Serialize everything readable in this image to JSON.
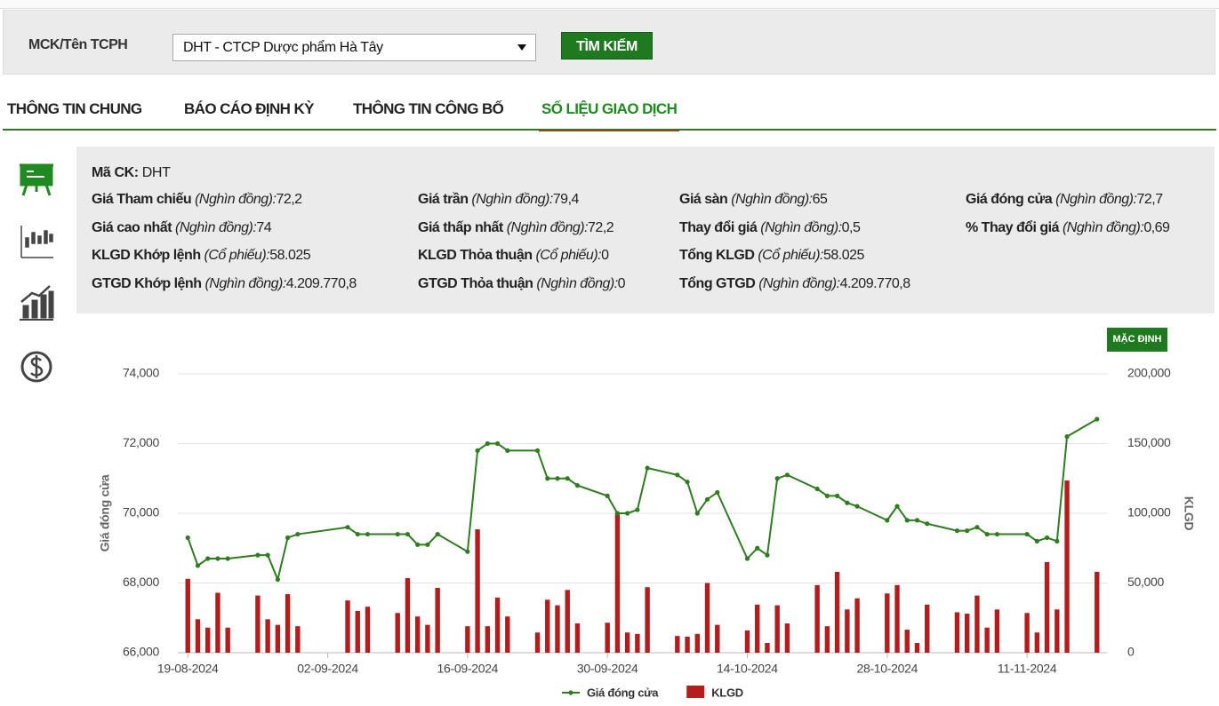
{
  "search": {
    "label": "MCK/Tên TCPH",
    "selected": "DHT - CTCP Dược phẩm Hà Tây",
    "button": "TÌM KIẾM"
  },
  "tabs": [
    "THÔNG TIN CHUNG",
    "BÁO CÁO ĐỊNH KỲ",
    "THÔNG TIN CÔNG BỐ",
    "SỐ LIỆU GIAO DỊCH"
  ],
  "active_tab": 3,
  "info": {
    "code": {
      "label": "Mã CK:",
      "value": "DHT"
    },
    "rows": [
      [
        {
          "label": "Giá Tham chiếu",
          "unit": "(Nghìn đồng):",
          "value": "72,2"
        },
        {
          "label": "Giá trần",
          "unit": "(Nghìn đồng):",
          "value": "79,4"
        },
        {
          "label": "Giá sàn",
          "unit": "(Nghìn đồng):",
          "value": "65"
        },
        {
          "label": "Giá đóng cửa",
          "unit": "(Nghìn đồng):",
          "value": "72,7"
        }
      ],
      [
        {
          "label": "Giá cao nhất",
          "unit": "(Nghìn đồng):",
          "value": "74"
        },
        {
          "label": "Giá thấp nhất",
          "unit": "(Nghìn đồng):",
          "value": "72,2"
        },
        {
          "label": "Thay đổi giá",
          "unit": "(Nghìn đồng):",
          "value": "0,5"
        },
        {
          "label": "% Thay đổi giá",
          "unit": "(Nghìn đồng):",
          "value": "0,69"
        }
      ],
      [
        {
          "label": "KLGD Khớp lệnh",
          "unit": "(Cổ phiếu):",
          "value": "58.025"
        },
        {
          "label": "KLGD Thỏa thuận",
          "unit": "(Cổ phiếu):",
          "value": "0"
        },
        {
          "label": "Tổng KLGD",
          "unit": "(Cổ phiếu):",
          "value": "58.025"
        }
      ],
      [
        {
          "label": "GTGD Khớp lệnh",
          "unit": "(Nghìn đồng):",
          "value": "4.209.770,8"
        },
        {
          "label": "GTGD Thỏa thuận",
          "unit": "(Nghìn đồng):",
          "value": "0"
        },
        {
          "label": "Tổng GTGD",
          "unit": "(Nghìn đồng):",
          "value": "4.209.770,8"
        }
      ]
    ]
  },
  "reset_button": "MẶC ĐỊNH",
  "chart_data": {
    "type": "combo",
    "x": [
      "19-08-2024",
      "20-08-2024",
      "21-08-2024",
      "22-08-2024",
      "23-08-2024",
      "26-08-2024",
      "27-08-2024",
      "28-08-2024",
      "29-08-2024",
      "30-08-2024",
      "04-09-2024",
      "05-09-2024",
      "06-09-2024",
      "09-09-2024",
      "10-09-2024",
      "11-09-2024",
      "12-09-2024",
      "13-09-2024",
      "16-09-2024",
      "17-09-2024",
      "18-09-2024",
      "19-09-2024",
      "20-09-2024",
      "23-09-2024",
      "24-09-2024",
      "25-09-2024",
      "26-09-2024",
      "27-09-2024",
      "30-09-2024",
      "01-10-2024",
      "02-10-2024",
      "03-10-2024",
      "04-10-2024",
      "07-10-2024",
      "08-10-2024",
      "09-10-2024",
      "10-10-2024",
      "11-10-2024",
      "14-10-2024",
      "15-10-2024",
      "16-10-2024",
      "17-10-2024",
      "18-10-2024",
      "21-10-2024",
      "22-10-2024",
      "23-10-2024",
      "24-10-2024",
      "25-10-2024",
      "28-10-2024",
      "29-10-2024",
      "30-10-2024",
      "31-10-2024",
      "01-11-2024",
      "04-11-2024",
      "05-11-2024",
      "06-11-2024",
      "07-11-2024",
      "08-11-2024",
      "11-11-2024",
      "12-11-2024",
      "13-11-2024",
      "14-11-2024",
      "15-11-2024",
      "18-11-2024"
    ],
    "series": [
      {
        "name": "Giá đóng cửa",
        "type": "line",
        "color": "#2e7d1e",
        "values": [
          69300,
          68500,
          68700,
          68700,
          68700,
          68800,
          68800,
          68100,
          69300,
          69400,
          69600,
          69400,
          69400,
          69400,
          69400,
          69100,
          69100,
          69400,
          68900,
          71800,
          72000,
          72000,
          71800,
          71800,
          71000,
          71000,
          71000,
          70800,
          70500,
          70000,
          70000,
          70100,
          71300,
          71100,
          70900,
          70000,
          70400,
          70600,
          68700,
          69000,
          68800,
          71000,
          71100,
          70700,
          70500,
          70500,
          70300,
          70200,
          69800,
          70200,
          69800,
          69800,
          69700,
          69500,
          69500,
          69600,
          69400,
          69400,
          69400,
          69200,
          69300,
          69200,
          72200,
          72700
        ]
      },
      {
        "name": "KLGD",
        "type": "bar",
        "axis": "y2",
        "color": "#b71c1c",
        "values": [
          53000,
          24000,
          18000,
          43000,
          18000,
          41000,
          24000,
          20000,
          42000,
          19000,
          37500,
          30000,
          33000,
          28500,
          53500,
          26000,
          20000,
          46500,
          19000,
          88500,
          19000,
          39500,
          26000,
          14500,
          38000,
          34000,
          45000,
          21000,
          21500,
          100500,
          14500,
          13500,
          47000,
          12000,
          11500,
          13500,
          50000,
          20000,
          16000,
          34500,
          7000,
          34000,
          21000,
          48500,
          19000,
          58000,
          31000,
          39000,
          42500,
          48500,
          16500,
          7000,
          34500,
          29000,
          28000,
          41000,
          18000,
          31000,
          28500,
          14500,
          65000,
          31000,
          123500,
          58025
        ]
      }
    ],
    "xlim": [
      "18-08-2024",
      "19-11-2024"
    ],
    "xticks": [
      "19-08-2024",
      "02-09-2024",
      "16-09-2024",
      "30-09-2024",
      "14-10-2024",
      "28-10-2024",
      "11-11-2024"
    ],
    "ylim": [
      66000,
      74000
    ],
    "yticks": [
      {
        "value": 66000,
        "label": "66,000"
      },
      {
        "value": 68000,
        "label": "68,000"
      },
      {
        "value": 70000,
        "label": "70,000"
      },
      {
        "value": 72000,
        "label": "72,000"
      },
      {
        "value": 74000,
        "label": "74,000"
      }
    ],
    "y2lim": [
      0,
      200000
    ],
    "y2ticks": [
      0,
      {
        "value": 50000,
        "label": "50,000"
      },
      {
        "value": 100000,
        "label": "100,000"
      },
      {
        "value": 150000,
        "label": "150,000"
      },
      {
        "value": 200000,
        "label": "200,000"
      }
    ],
    "ylabel": "Giá đóng cửa",
    "y2label": "KLGD",
    "grid": true,
    "legend": "bottom"
  }
}
